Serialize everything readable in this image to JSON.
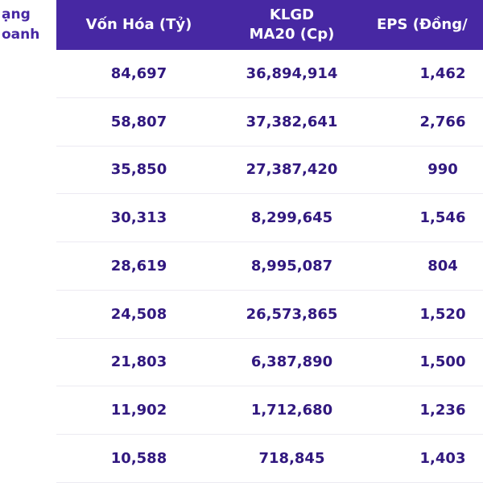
{
  "table": {
    "header": {
      "frozen_line1": "ạng",
      "frozen_line2": "oanh",
      "von_hoa": "Vốn Hóa (Tỷ)",
      "klgd_line1": "KLGD",
      "klgd_line2": "MA20 (Cp)",
      "eps": "EPS (Đồng/"
    },
    "rows": [
      {
        "von_hoa": "84,697",
        "klgd": "36,894,914",
        "eps": "1,462"
      },
      {
        "von_hoa": "58,807",
        "klgd": "37,382,641",
        "eps": "2,766"
      },
      {
        "von_hoa": "35,850",
        "klgd": "27,387,420",
        "eps": "990"
      },
      {
        "von_hoa": "30,313",
        "klgd": "8,299,645",
        "eps": "1,546"
      },
      {
        "von_hoa": "28,619",
        "klgd": "8,995,087",
        "eps": "804"
      },
      {
        "von_hoa": "24,508",
        "klgd": "26,573,865",
        "eps": "1,520"
      },
      {
        "von_hoa": "21,803",
        "klgd": "6,387,890",
        "eps": "1,500"
      },
      {
        "von_hoa": "11,902",
        "klgd": "1,712,680",
        "eps": "1,236"
      },
      {
        "von_hoa": "10,588",
        "klgd": "718,845",
        "eps": "1,403"
      }
    ]
  },
  "colors": {
    "header_bg": "#4728A3",
    "header_text": "#FFFFFF",
    "value_text": "#31187F",
    "frozen_text": "#4728A3",
    "separator": "#ECEAF2",
    "row_bg": "#FFFFFF"
  }
}
